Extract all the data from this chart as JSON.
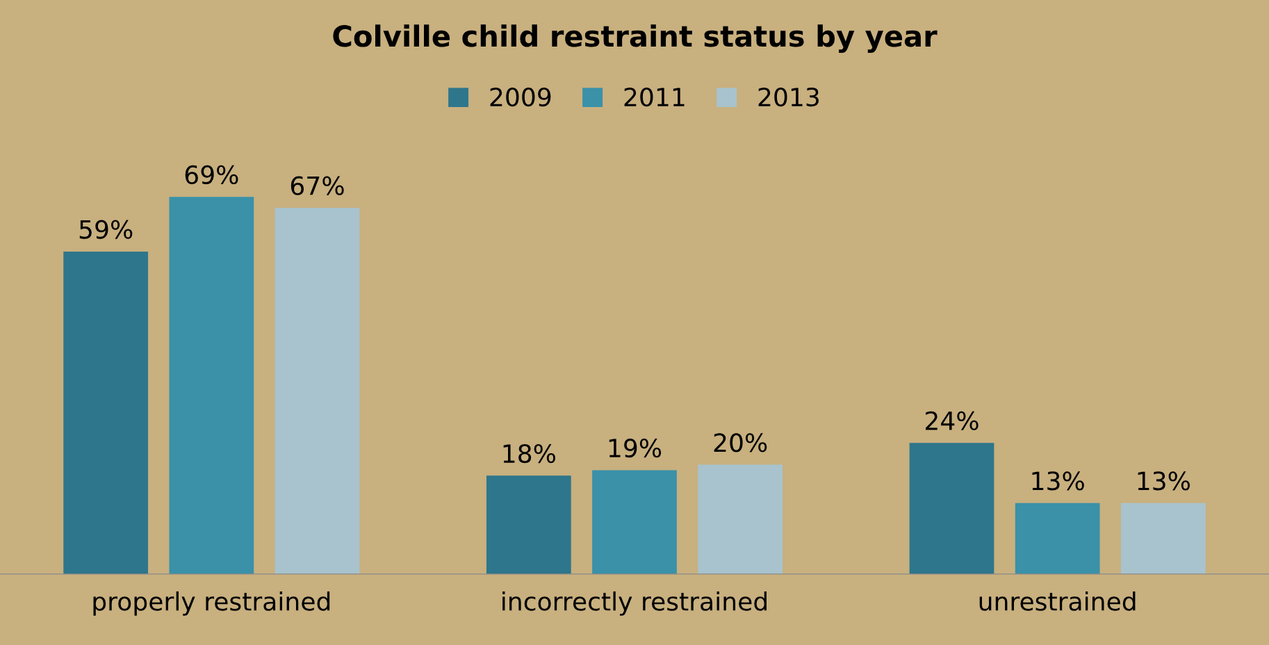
{
  "chart_data": {
    "type": "bar",
    "title": "Colville child restraint status by year",
    "categories": [
      "properly restrained",
      "incorrectly restrained",
      "unrestrained"
    ],
    "series": [
      {
        "name": "2009",
        "color": "#2e768b",
        "values": [
          59,
          18,
          24
        ],
        "value_labels": [
          "59%",
          "18%",
          "24%"
        ]
      },
      {
        "name": "2011",
        "color": "#3a91a8",
        "values": [
          69,
          19,
          13
        ],
        "value_labels": [
          "69%",
          "19%",
          "13%"
        ]
      },
      {
        "name": "2013",
        "color": "#a8c3cd",
        "values": [
          67,
          20,
          13
        ],
        "value_labels": [
          "67%",
          "20%",
          "13%"
        ]
      }
    ],
    "legend": "top",
    "grid": false
  }
}
